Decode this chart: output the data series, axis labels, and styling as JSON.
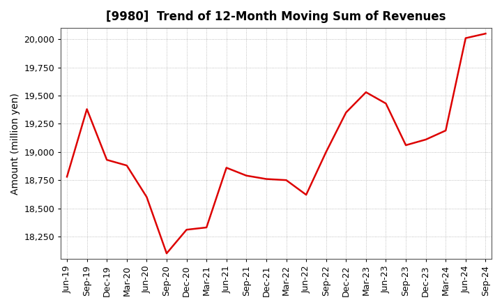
{
  "title": "[9980]  Trend of 12-Month Moving Sum of Revenues",
  "ylabel": "Amount (million yen)",
  "x_labels": [
    "Jun-19",
    "Sep-19",
    "Dec-19",
    "Mar-20",
    "Jun-20",
    "Sep-20",
    "Dec-20",
    "Mar-21",
    "Jun-21",
    "Sep-21",
    "Dec-21",
    "Mar-22",
    "Jun-22",
    "Sep-22",
    "Dec-22",
    "Mar-23",
    "Jun-23",
    "Sep-23",
    "Dec-23",
    "Mar-24",
    "Jun-24",
    "Sep-24"
  ],
  "y_values": [
    18780,
    19380,
    18930,
    18880,
    18600,
    18100,
    18310,
    18330,
    18860,
    18790,
    18760,
    18750,
    18620,
    19000,
    19350,
    19530,
    19430,
    19060,
    19110,
    19190,
    20010,
    20050
  ],
  "ylim": [
    18050,
    20100
  ],
  "yticks": [
    18250,
    18500,
    18750,
    19000,
    19250,
    19500,
    19750,
    20000
  ],
  "line_color": "#dd0000",
  "line_width": 1.8,
  "background_color": "#ffffff",
  "grid_color": "#aaaaaa",
  "title_fontsize": 12,
  "label_fontsize": 10,
  "tick_fontsize": 9
}
